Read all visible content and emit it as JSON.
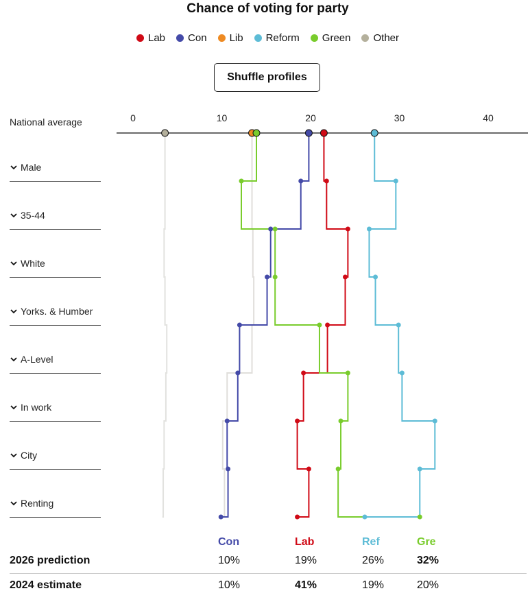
{
  "title": "Chance of voting for party",
  "shuffle_label": "Shuffle profiles",
  "national_average_label": "National average",
  "legend": [
    {
      "name": "Lab",
      "color": "#d00a16"
    },
    {
      "name": "Con",
      "color": "#444aa8"
    },
    {
      "name": "Lib",
      "color": "#ee8a22"
    },
    {
      "name": "Reform",
      "color": "#5dbcd6"
    },
    {
      "name": "Green",
      "color": "#79cc2c"
    },
    {
      "name": "Other",
      "color": "#b4b09c"
    }
  ],
  "chart_data": {
    "type": "line",
    "title": "Chance of voting for party",
    "xlim": [
      0,
      44
    ],
    "x_ticks": [
      "0",
      "10",
      "20",
      "30",
      "40"
    ],
    "national_average": {
      "Lab": 21.5,
      "Con": 19.8,
      "Lib": 13.4,
      "Reform": 27.2,
      "Green": 13.9,
      "Other": 3.6
    },
    "categories": [
      "Male",
      "35-44",
      "White",
      "Yorks. & Humber",
      "A-Level",
      "In work",
      "City",
      "Renting"
    ],
    "series": [
      {
        "name": "Lab",
        "color": "#d00a16",
        "values": [
          21.8,
          24.2,
          23.9,
          21.9,
          19.2,
          18.5,
          19.8,
          18.5
        ]
      },
      {
        "name": "Con",
        "color": "#444aa8",
        "values": [
          18.9,
          15.5,
          15.1,
          12.0,
          11.8,
          10.6,
          10.7,
          9.9
        ]
      },
      {
        "name": "Reform",
        "color": "#5dbcd6",
        "values": [
          29.6,
          26.6,
          27.3,
          29.9,
          30.3,
          34.0,
          32.3,
          26.1
        ]
      },
      {
        "name": "Green",
        "color": "#79cc2c",
        "values": [
          12.2,
          16.0,
          16.0,
          21.0,
          24.2,
          23.4,
          23.1,
          32.3
        ]
      },
      {
        "name": "Lib",
        "color": "#ee8a22",
        "values": [
          13.4,
          13.5,
          13.6,
          13.4,
          10.6,
          10.1,
          10.3,
          10.1
        ]
      },
      {
        "name": "Other",
        "color": "#b4b09c",
        "values": [
          3.6,
          3.5,
          3.6,
          3.8,
          3.7,
          3.5,
          3.4,
          3.3
        ]
      }
    ]
  },
  "table": {
    "headers": [
      {
        "label": "Con",
        "color": "#444aa8"
      },
      {
        "label": "Lab",
        "color": "#d00a16"
      },
      {
        "label": "Ref",
        "color": "#5dbcd6"
      },
      {
        "label": "Gre",
        "color": "#79cc2c"
      }
    ],
    "rows": [
      {
        "label": "2026 prediction",
        "values": [
          "10%",
          "19%",
          "26%",
          "32%"
        ],
        "bold_index": 3
      },
      {
        "label": "2024 estimate",
        "values": [
          "10%",
          "41%",
          "19%",
          "20%"
        ],
        "bold_index": 1
      }
    ]
  }
}
